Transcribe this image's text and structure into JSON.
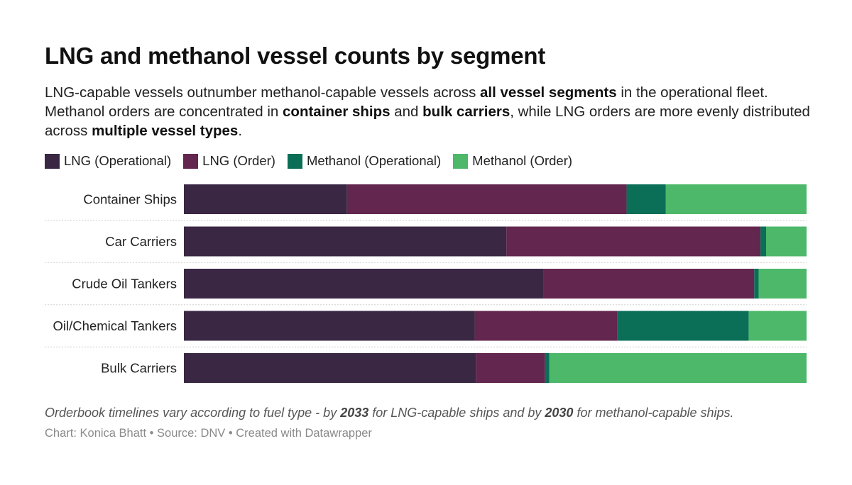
{
  "header": {
    "title": "LNG and methanol vessel counts by segment",
    "description": [
      {
        "text": "LNG-capable vessels outnumber methanol-capable vessels across ",
        "bold": false
      },
      {
        "text": "all vessel segments",
        "bold": true
      },
      {
        "text": " in the operational fleet. Methanol orders are concentrated in ",
        "bold": false
      },
      {
        "text": "container ships",
        "bold": true
      },
      {
        "text": " and ",
        "bold": false
      },
      {
        "text": "bulk carriers",
        "bold": true
      },
      {
        "text": ", while LNG orders are more evenly distributed across ",
        "bold": false
      },
      {
        "text": "multiple vessel types",
        "bold": true
      },
      {
        "text": ".",
        "bold": false
      }
    ]
  },
  "chart_data": {
    "type": "bar",
    "orientation": "horizontal",
    "stacking": "percent",
    "title": "LNG and methanol vessel counts by segment",
    "xlabel": "",
    "ylabel": "",
    "xlim": [
      0,
      100
    ],
    "categories": [
      "Container Ships",
      "Car Carriers",
      "Crude Oil Tankers",
      "Oil/Chemical Tankers",
      "Bulk Carriers"
    ],
    "series": [
      {
        "name": "LNG (Operational)",
        "color": "#3a2744",
        "values": [
          26.2,
          51.8,
          57.7,
          46.7,
          46.9
        ]
      },
      {
        "name": "LNG (Order)",
        "color": "#63264f",
        "values": [
          44.9,
          40.8,
          33.9,
          22.9,
          11.1
        ]
      },
      {
        "name": "Methanol (Operational)",
        "color": "#0b6e57",
        "values": [
          6.3,
          0.9,
          0.7,
          21.1,
          0.7
        ]
      },
      {
        "name": "Methanol (Order)",
        "color": "#4db86a",
        "values": [
          22.6,
          6.5,
          7.7,
          9.3,
          41.3
        ]
      }
    ],
    "legend_position": "top-left",
    "grid": false
  },
  "notes": [
    {
      "text": "Orderbook timelines vary according to fuel type - by ",
      "bold": false
    },
    {
      "text": "2033",
      "bold": true
    },
    {
      "text": " for LNG-capable ships and by ",
      "bold": false
    },
    {
      "text": "2030",
      "bold": true
    },
    {
      "text": " for methanol-capable ships.",
      "bold": false
    }
  ],
  "byline": "Chart: Konica Bhatt • Source: DNV • Created with Datawrapper"
}
